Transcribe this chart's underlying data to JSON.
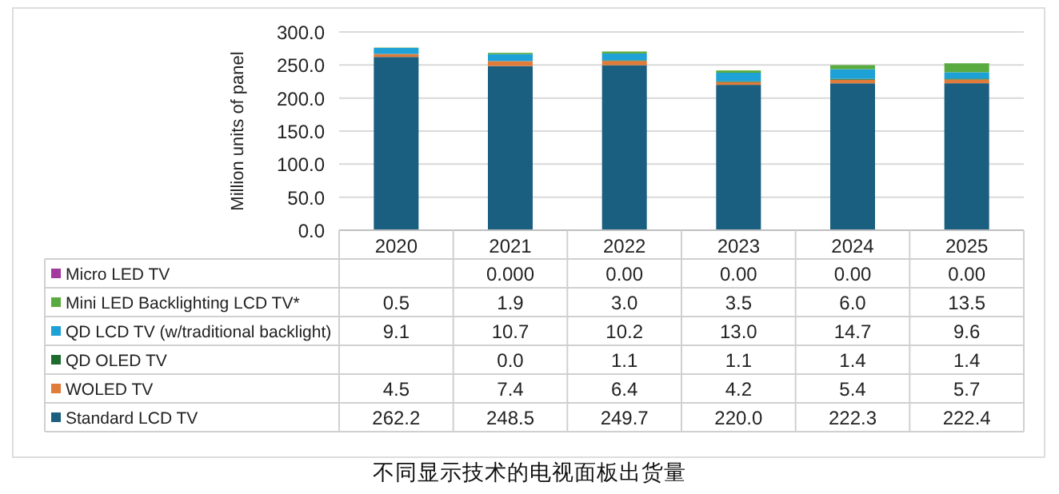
{
  "chart_data": {
    "type": "bar",
    "stacked": true,
    "ylabel": "Million units of panel",
    "categories": [
      "2020",
      "2021",
      "2022",
      "2023",
      "2024",
      "2025"
    ],
    "series": [
      {
        "name": "Standard LCD TV",
        "color": "#1a5e80",
        "values": [
          262.2,
          248.5,
          249.7,
          220.0,
          222.3,
          222.4
        ],
        "value_labels": [
          "262.2",
          "248.5",
          "249.7",
          "220.0",
          "222.3",
          "222.4"
        ]
      },
      {
        "name": "WOLED TV",
        "color": "#e07b39",
        "values": [
          4.5,
          7.4,
          6.4,
          4.2,
          5.4,
          5.7
        ],
        "value_labels": [
          "4.5",
          "7.4",
          "6.4",
          "4.2",
          "5.4",
          "5.7"
        ]
      },
      {
        "name": "QD OLED TV",
        "color": "#1e6b30",
        "values": [
          null,
          0.0,
          1.1,
          1.1,
          1.4,
          1.4
        ],
        "value_labels": [
          null,
          "0.0",
          "1.1",
          "1.1",
          "1.4",
          "1.4"
        ]
      },
      {
        "name": "QD LCD TV (w/traditional backlight)",
        "color": "#1da1d6",
        "values": [
          9.1,
          10.7,
          10.2,
          13.0,
          14.7,
          9.6
        ],
        "value_labels": [
          "9.1",
          "10.7",
          "10.2",
          "13.0",
          "14.7",
          "9.6"
        ]
      },
      {
        "name": "Mini LED Backlighting LCD TV*",
        "color": "#5aab3f",
        "values": [
          0.5,
          1.9,
          3.0,
          3.5,
          6.0,
          13.5
        ],
        "value_labels": [
          "0.5",
          "1.9",
          "3.0",
          "3.5",
          "6.0",
          "13.5"
        ]
      },
      {
        "name": "Micro LED TV",
        "color": "#a23aa0",
        "values": [
          null,
          0.0,
          0.0,
          0.0,
          0.0,
          0.0
        ],
        "value_labels": [
          null,
          "0.000",
          "0.00",
          "0.00",
          "0.00",
          "0.00"
        ]
      }
    ],
    "ylim": [
      0,
      300
    ],
    "yticks": [
      {
        "value": 0,
        "label": "0.0"
      },
      {
        "value": 50,
        "label": "50.0"
      },
      {
        "value": 100,
        "label": "100.0"
      },
      {
        "value": 150,
        "label": "150.0"
      },
      {
        "value": 200,
        "label": "200.0"
      },
      {
        "value": 250,
        "label": "250.0"
      },
      {
        "value": 300,
        "label": "300.0"
      }
    ],
    "grid": "y",
    "legend": "bottom",
    "annotations": [
      "不同显示技术的电视面板出货量"
    ]
  }
}
